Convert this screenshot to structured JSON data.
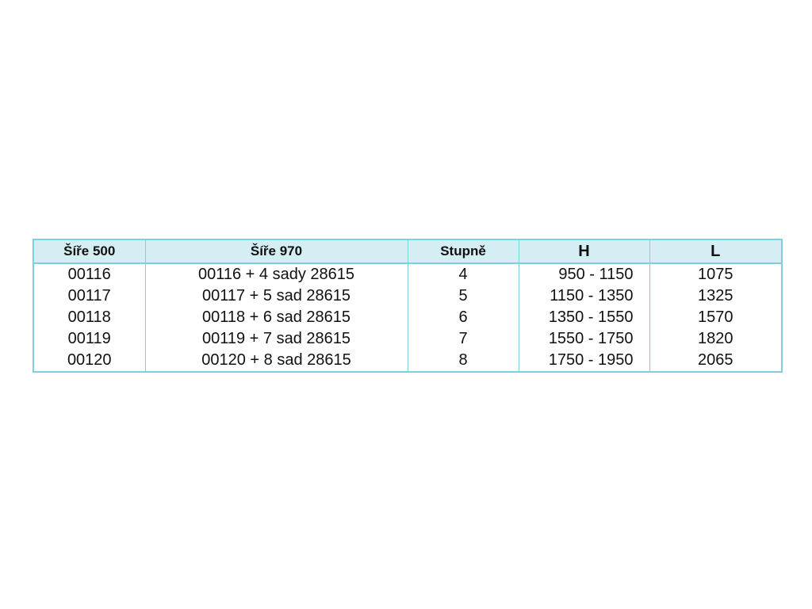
{
  "table": {
    "header": [
      "Šíře 500",
      "Šíře 970",
      "Stupně",
      "H",
      "L"
    ],
    "rows": [
      [
        "00116",
        "00116 + 4 sady 28615",
        "4",
        "950 - 1150",
        "1075"
      ],
      [
        "00117",
        "00117 + 5 sad 28615",
        "5",
        "1150 - 1350",
        "1325"
      ],
      [
        "00118",
        "00118 + 6 sad 28615",
        "6",
        "1350 - 1550",
        "1570"
      ],
      [
        "00119",
        "00119 + 7 sad 28615",
        "7",
        "1550 - 1750",
        "1820"
      ],
      [
        "00120",
        "00120 + 8 sad 28615",
        "8",
        "1750 - 1950",
        "2065"
      ]
    ]
  }
}
